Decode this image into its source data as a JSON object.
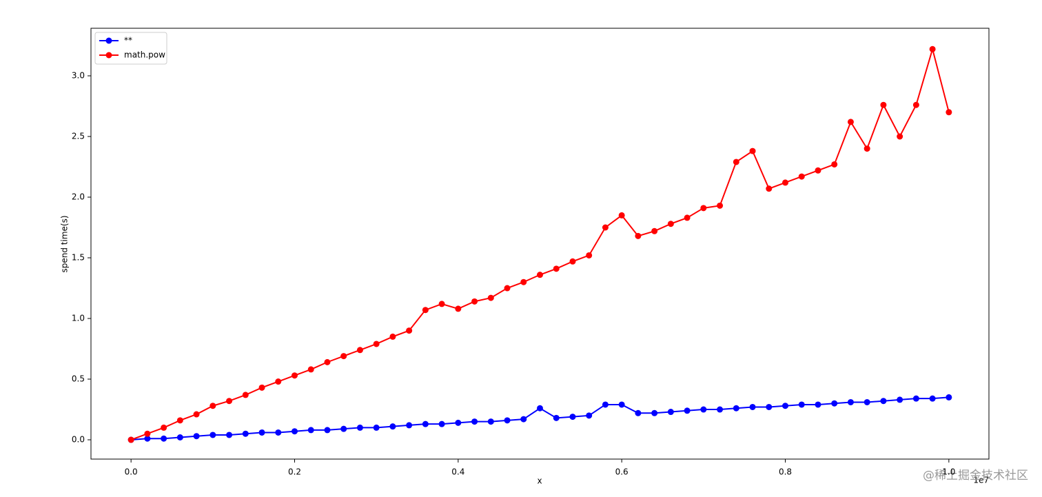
{
  "chart_data": {
    "type": "line",
    "x_label": "x",
    "y_label": "spend time(s)",
    "x_offset_label": "1e7",
    "watermark": "@稀土掘金技术社区",
    "legend": "upper left",
    "x": [
      0,
      0.02,
      0.04,
      0.06,
      0.08,
      0.1,
      0.12,
      0.14,
      0.16,
      0.18,
      0.2,
      0.22,
      0.24,
      0.26,
      0.28,
      0.3,
      0.32,
      0.34,
      0.36,
      0.38,
      0.4,
      0.42,
      0.44,
      0.46,
      0.48,
      0.5,
      0.52,
      0.54,
      0.56,
      0.58,
      0.6,
      0.62,
      0.64,
      0.66,
      0.68,
      0.7,
      0.72,
      0.74,
      0.76,
      0.78,
      0.8,
      0.82,
      0.84,
      0.86,
      0.88,
      0.9,
      0.92,
      0.94,
      0.96,
      0.98,
      1.0
    ],
    "series": [
      {
        "name": "**",
        "color": "#0000ff",
        "values": [
          0,
          0.01,
          0.01,
          0.02,
          0.03,
          0.04,
          0.04,
          0.05,
          0.06,
          0.06,
          0.07,
          0.08,
          0.08,
          0.09,
          0.1,
          0.1,
          0.11,
          0.12,
          0.13,
          0.13,
          0.14,
          0.15,
          0.15,
          0.16,
          0.17,
          0.26,
          0.18,
          0.19,
          0.2,
          0.29,
          0.29,
          0.22,
          0.22,
          0.23,
          0.24,
          0.25,
          0.25,
          0.26,
          0.27,
          0.27,
          0.28,
          0.29,
          0.29,
          0.3,
          0.31,
          0.31,
          0.32,
          0.33,
          0.34,
          0.34,
          0.35
        ]
      },
      {
        "name": "math.pow",
        "color": "#ff0000",
        "values": [
          0,
          0.05,
          0.1,
          0.16,
          0.21,
          0.28,
          0.32,
          0.37,
          0.43,
          0.48,
          0.53,
          0.58,
          0.64,
          0.69,
          0.74,
          0.79,
          0.85,
          0.9,
          1.07,
          1.12,
          1.08,
          1.14,
          1.17,
          1.25,
          1.3,
          1.36,
          1.41,
          1.47,
          1.52,
          1.75,
          1.85,
          1.68,
          1.72,
          1.78,
          1.83,
          1.91,
          1.93,
          2.29,
          2.38,
          2.07,
          2.12,
          2.17,
          2.22,
          2.27,
          2.62,
          2.4,
          2.76,
          2.5,
          2.76,
          3.22,
          2.7
        ]
      }
    ],
    "xlim": [
      -0.049,
      1.049
    ],
    "xticks": [
      {
        "value": 0,
        "label": "0.0"
      },
      0.2,
      0.4,
      0.6,
      0.8,
      {
        "value": 1,
        "label": "1.0"
      }
    ],
    "ylim": [
      -0.159,
      3.392
    ],
    "yticks": [
      {
        "value": 0,
        "label": "0.0"
      },
      0.5,
      {
        "value": 1,
        "label": "1.0"
      },
      1.5,
      {
        "value": 2,
        "label": "2.0"
      },
      2.5,
      {
        "value": 3,
        "label": "3.0"
      }
    ],
    "grid": false
  }
}
